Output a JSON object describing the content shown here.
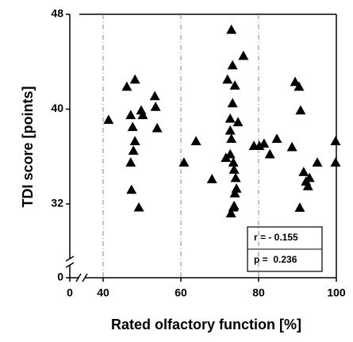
{
  "chart_data": {
    "type": "scatter",
    "xlabel": "Rated olfactory function [%]",
    "ylabel": "TDI score [points]",
    "xlim": [
      0,
      100
    ],
    "xticks": [
      0,
      40,
      60,
      80,
      100
    ],
    "ylim": [
      0,
      48
    ],
    "yticks": [
      0,
      32,
      40,
      48
    ],
    "axis_break": true,
    "grid": true,
    "color": "#000000",
    "annotations": [
      "r = - 0.155",
      "p =  0.236"
    ],
    "x": [
      41.4,
      46.1,
      48.2,
      47.1,
      47.6,
      48.2,
      47.8,
      47.1,
      47.3,
      49.2,
      50.2,
      49.8,
      53.3,
      53.5,
      53.9,
      60.8,
      63.9,
      68.0,
      71.6,
      72.0,
      73.0,
      73.3,
      72.7,
      72.7,
      73.0,
      72.7,
      73.5,
      73.7,
      74.1,
      73.9,
      73.7,
      73.5,
      72.9,
      73.3,
      73.9,
      74.7,
      76.1,
      74.3,
      78.8,
      80.2,
      81.4,
      82.9,
      84.7,
      88.6,
      89.4,
      90.4,
      90.8,
      91.6,
      92.2,
      93.1,
      92.7,
      95.1,
      90.6,
      99.8,
      99.8
    ],
    "values": [
      39.1,
      41.9,
      42.5,
      39.5,
      38.5,
      37.3,
      36.5,
      35.5,
      33.2,
      30.5,
      39.5,
      39.9,
      41.1,
      40.2,
      38.4,
      35.5,
      37.3,
      34.1,
      35.9,
      42.5,
      46.7,
      43.7,
      39.2,
      38.2,
      37.5,
      36.2,
      35.5,
      34.9,
      34.2,
      32.9,
      31.2,
      30.5,
      28.0,
      40.5,
      42.0,
      38.9,
      44.5,
      33.3,
      36.9,
      36.9,
      37.1,
      36.2,
      37.5,
      36.8,
      42.3,
      41.9,
      39.9,
      34.7,
      33.9,
      34.2,
      33.5,
      35.5,
      30.4,
      37.3,
      35.5
    ]
  }
}
